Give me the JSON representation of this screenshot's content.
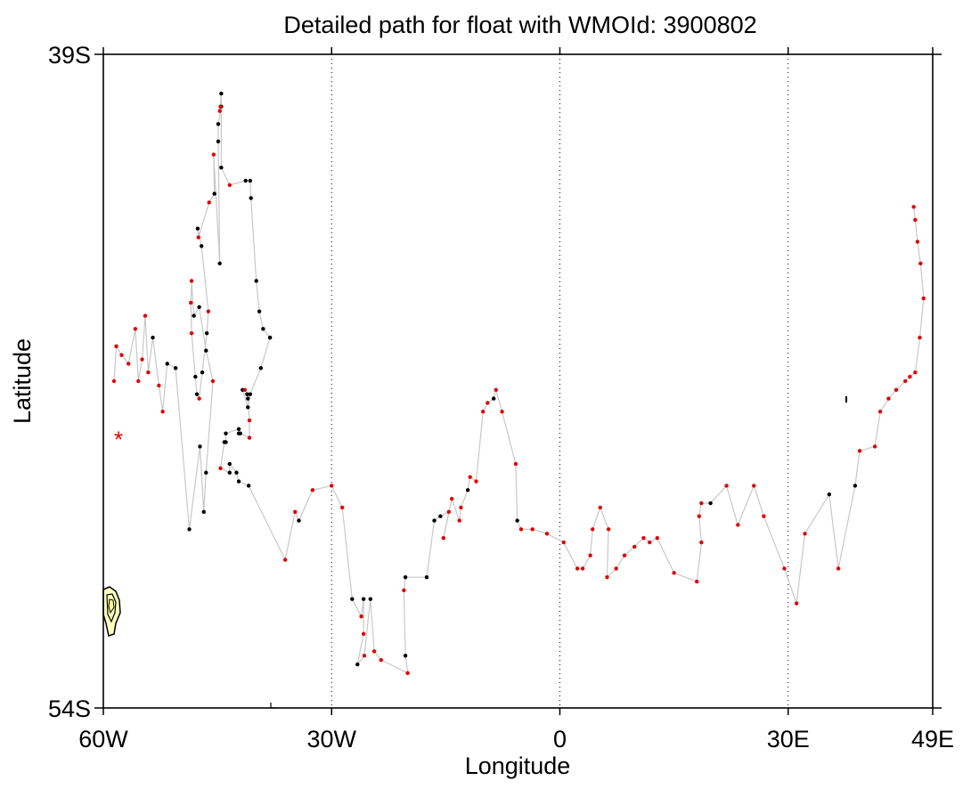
{
  "chart_data": {
    "type": "scatter",
    "title": "Detailed path for float with WMOId: 3900802",
    "xlabel": "Longitude",
    "ylabel": "Latitude",
    "xlim": [
      -60,
      49
    ],
    "ylim": [
      -54,
      -39
    ],
    "x_ticks": [
      {
        "value": -60,
        "label": "60W"
      },
      {
        "value": -30,
        "label": "30W"
      },
      {
        "value": 0,
        "label": "0"
      },
      {
        "value": 30,
        "label": "30E"
      },
      {
        "value": 49,
        "label": "49E"
      }
    ],
    "y_ticks": [
      {
        "value": -39,
        "label": "39S"
      },
      {
        "value": -54,
        "label": "54S"
      }
    ],
    "gridlines_x": [
      -30,
      0,
      30
    ],
    "grid": "dotted vertical meridians",
    "colors": {
      "path": "#c8c8c8",
      "marker_red": "#e00000",
      "marker_black": "#000000",
      "land_fill": "#ffffc0",
      "start_marker": "#e00000"
    },
    "start_marker": {
      "lon": -58,
      "lat": -47.8,
      "symbol": "*"
    },
    "path": [
      {
        "lon": -58.6,
        "lat": -46.5,
        "c": "r"
      },
      {
        "lon": -58.3,
        "lat": -45.7,
        "c": "r"
      },
      {
        "lon": -57.6,
        "lat": -45.9,
        "c": "r"
      },
      {
        "lon": -56.7,
        "lat": -46.1,
        "c": "r"
      },
      {
        "lon": -55.8,
        "lat": -45.3,
        "c": "r"
      },
      {
        "lon": -55.4,
        "lat": -46.5,
        "c": "r"
      },
      {
        "lon": -54.9,
        "lat": -46.0,
        "c": "r"
      },
      {
        "lon": -54.5,
        "lat": -45.0,
        "c": "r"
      },
      {
        "lon": -54.1,
        "lat": -46.3,
        "c": "r"
      },
      {
        "lon": -53.5,
        "lat": -45.5,
        "c": "k"
      },
      {
        "lon": -52.7,
        "lat": -46.6,
        "c": "r"
      },
      {
        "lon": -52.2,
        "lat": -47.2,
        "c": "r"
      },
      {
        "lon": -51.6,
        "lat": -46.1,
        "c": "k"
      },
      {
        "lon": -50.5,
        "lat": -46.2,
        "c": "k"
      },
      {
        "lon": -48.7,
        "lat": -49.9,
        "c": "k"
      },
      {
        "lon": -47.3,
        "lat": -48.0,
        "c": "k"
      },
      {
        "lon": -46.8,
        "lat": -49.5,
        "c": "k"
      },
      {
        "lon": -46.5,
        "lat": -48.6,
        "c": "k"
      },
      {
        "lon": -45.6,
        "lat": -46.5,
        "c": "r"
      },
      {
        "lon": -46.5,
        "lat": -45.8,
        "c": "k"
      },
      {
        "lon": -47.4,
        "lat": -44.8,
        "c": "k"
      },
      {
        "lon": -48.1,
        "lat": -45.0,
        "c": "k"
      },
      {
        "lon": -48.4,
        "lat": -44.2,
        "c": "r"
      },
      {
        "lon": -48.5,
        "lat": -44.7,
        "c": "r"
      },
      {
        "lon": -48.4,
        "lat": -45.4,
        "c": "r"
      },
      {
        "lon": -47.9,
        "lat": -46.4,
        "c": "k"
      },
      {
        "lon": -47.7,
        "lat": -46.8,
        "c": "k"
      },
      {
        "lon": -47.4,
        "lat": -46.9,
        "c": "r"
      },
      {
        "lon": -47.0,
        "lat": -46.3,
        "c": "k"
      },
      {
        "lon": -46.4,
        "lat": -45.4,
        "c": "k"
      },
      {
        "lon": -46.2,
        "lat": -44.9,
        "c": "r"
      },
      {
        "lon": -47.1,
        "lat": -43.4,
        "c": "k"
      },
      {
        "lon": -47.6,
        "lat": -43.0,
        "c": "k"
      },
      {
        "lon": -47.5,
        "lat": -43.2,
        "c": "r"
      },
      {
        "lon": -46.1,
        "lat": -42.4,
        "c": "r"
      },
      {
        "lon": -45.4,
        "lat": -42.2,
        "c": "k"
      },
      {
        "lon": -45.5,
        "lat": -41.3,
        "c": "r"
      },
      {
        "lon": -44.7,
        "lat": -43.8,
        "c": "k"
      },
      {
        "lon": -44.9,
        "lat": -41.0,
        "c": "k"
      },
      {
        "lon": -44.9,
        "lat": -40.6,
        "c": "k"
      },
      {
        "lon": -44.5,
        "lat": -40.2,
        "c": "k"
      },
      {
        "lon": -44.6,
        "lat": -40.2,
        "c": "r"
      },
      {
        "lon": -44.7,
        "lat": -40.3,
        "c": "r"
      },
      {
        "lon": -44.5,
        "lat": -39.9,
        "c": "k"
      },
      {
        "lon": -44.5,
        "lat": -41.6,
        "c": "k"
      },
      {
        "lon": -43.4,
        "lat": -42.0,
        "c": "r"
      },
      {
        "lon": -41.3,
        "lat": -41.9,
        "c": "k"
      },
      {
        "lon": -40.7,
        "lat": -41.9,
        "c": "k"
      },
      {
        "lon": -40.6,
        "lat": -42.3,
        "c": "k"
      },
      {
        "lon": -39.9,
        "lat": -44.2,
        "c": "k"
      },
      {
        "lon": -39.5,
        "lat": -44.9,
        "c": "k"
      },
      {
        "lon": -39.0,
        "lat": -45.3,
        "c": "k"
      },
      {
        "lon": -38.1,
        "lat": -45.5,
        "c": "k"
      },
      {
        "lon": -38.1,
        "lat": -45.5,
        "c": "k"
      },
      {
        "lon": -39.3,
        "lat": -46.2,
        "c": "k"
      },
      {
        "lon": -40.7,
        "lat": -46.8,
        "c": "k"
      },
      {
        "lon": -41.0,
        "lat": -47.1,
        "c": "k"
      },
      {
        "lon": -41.7,
        "lat": -46.7,
        "c": "k"
      },
      {
        "lon": -41.4,
        "lat": -46.7,
        "c": "r"
      },
      {
        "lon": -41.1,
        "lat": -46.8,
        "c": "k"
      },
      {
        "lon": -41.0,
        "lat": -46.9,
        "c": "k"
      },
      {
        "lon": -40.8,
        "lat": -47.4,
        "c": "r"
      },
      {
        "lon": -40.8,
        "lat": -47.8,
        "c": "r"
      },
      {
        "lon": -42.0,
        "lat": -47.7,
        "c": "k"
      },
      {
        "lon": -42.2,
        "lat": -47.7,
        "c": "k"
      },
      {
        "lon": -42.2,
        "lat": -47.6,
        "c": "k"
      },
      {
        "lon": -43.9,
        "lat": -47.7,
        "c": "k"
      },
      {
        "lon": -43.9,
        "lat": -47.9,
        "c": "k"
      },
      {
        "lon": -44.1,
        "lat": -47.9,
        "c": "k"
      },
      {
        "lon": -44.6,
        "lat": -48.5,
        "c": "r"
      },
      {
        "lon": -43.4,
        "lat": -48.6,
        "c": "k"
      },
      {
        "lon": -43.4,
        "lat": -48.4,
        "c": "k"
      },
      {
        "lon": -42.5,
        "lat": -48.6,
        "c": "k"
      },
      {
        "lon": -42.2,
        "lat": -48.8,
        "c": "k"
      },
      {
        "lon": -40.9,
        "lat": -48.9,
        "c": "k"
      },
      {
        "lon": -36.1,
        "lat": -50.6,
        "c": "r"
      },
      {
        "lon": -34.8,
        "lat": -49.5,
        "c": "r"
      },
      {
        "lon": -34.3,
        "lat": -49.7,
        "c": "k"
      },
      {
        "lon": -32.5,
        "lat": -49.0,
        "c": "r"
      },
      {
        "lon": -30.0,
        "lat": -48.9,
        "c": "r"
      },
      {
        "lon": -28.6,
        "lat": -49.4,
        "c": "r"
      },
      {
        "lon": -27.3,
        "lat": -51.5,
        "c": "k"
      },
      {
        "lon": -26.1,
        "lat": -51.9,
        "c": "r"
      },
      {
        "lon": -25.8,
        "lat": -51.5,
        "c": "k"
      },
      {
        "lon": -25.8,
        "lat": -52.3,
        "c": "r"
      },
      {
        "lon": -26.6,
        "lat": -53.0,
        "c": "k"
      },
      {
        "lon": -25.7,
        "lat": -52.8,
        "c": "r"
      },
      {
        "lon": -24.9,
        "lat": -51.5,
        "c": "k"
      },
      {
        "lon": -24.4,
        "lat": -52.7,
        "c": "r"
      },
      {
        "lon": -23.5,
        "lat": -52.9,
        "c": "r"
      },
      {
        "lon": -20.0,
        "lat": -53.2,
        "c": "r"
      },
      {
        "lon": -20.3,
        "lat": -52.8,
        "c": "k"
      },
      {
        "lon": -20.5,
        "lat": -51.3,
        "c": "r"
      },
      {
        "lon": -20.3,
        "lat": -51.0,
        "c": "k"
      },
      {
        "lon": -17.5,
        "lat": -51.0,
        "c": "k"
      },
      {
        "lon": -16.5,
        "lat": -49.7,
        "c": "k"
      },
      {
        "lon": -15.7,
        "lat": -49.6,
        "c": "k"
      },
      {
        "lon": -14.6,
        "lat": -49.5,
        "c": "r"
      },
      {
        "lon": -15.3,
        "lat": -50.1,
        "c": "r"
      },
      {
        "lon": -14.2,
        "lat": -49.2,
        "c": "r"
      },
      {
        "lon": -13.2,
        "lat": -49.7,
        "c": "r"
      },
      {
        "lon": -13.0,
        "lat": -49.4,
        "c": "r"
      },
      {
        "lon": -12.1,
        "lat": -49.0,
        "c": "k"
      },
      {
        "lon": -11.8,
        "lat": -48.7,
        "c": "r"
      },
      {
        "lon": -11.0,
        "lat": -48.8,
        "c": "r"
      },
      {
        "lon": -10.1,
        "lat": -47.2,
        "c": "r"
      },
      {
        "lon": -9.5,
        "lat": -47.0,
        "c": "r"
      },
      {
        "lon": -8.7,
        "lat": -46.9,
        "c": "k"
      },
      {
        "lon": -8.4,
        "lat": -46.7,
        "c": "r"
      },
      {
        "lon": -7.6,
        "lat": -47.2,
        "c": "r"
      },
      {
        "lon": -5.8,
        "lat": -48.4,
        "c": "r"
      },
      {
        "lon": -5.6,
        "lat": -49.7,
        "c": "k"
      },
      {
        "lon": -5.1,
        "lat": -49.9,
        "c": "r"
      },
      {
        "lon": -3.6,
        "lat": -49.9,
        "c": "r"
      },
      {
        "lon": -1.7,
        "lat": -50.0,
        "c": "r"
      },
      {
        "lon": 0.5,
        "lat": -50.2,
        "c": "r"
      },
      {
        "lon": 2.3,
        "lat": -50.8,
        "c": "r"
      },
      {
        "lon": 3.0,
        "lat": -50.8,
        "c": "r"
      },
      {
        "lon": 4.0,
        "lat": -50.5,
        "c": "r"
      },
      {
        "lon": 4.3,
        "lat": -49.9,
        "c": "r"
      },
      {
        "lon": 5.3,
        "lat": -49.4,
        "c": "r"
      },
      {
        "lon": 6.4,
        "lat": -49.9,
        "c": "r"
      },
      {
        "lon": 6.2,
        "lat": -51.0,
        "c": "r"
      },
      {
        "lon": 7.4,
        "lat": -50.8,
        "c": "r"
      },
      {
        "lon": 8.5,
        "lat": -50.5,
        "c": "r"
      },
      {
        "lon": 9.8,
        "lat": -50.3,
        "c": "r"
      },
      {
        "lon": 11.0,
        "lat": -50.1,
        "c": "r"
      },
      {
        "lon": 11.8,
        "lat": -50.2,
        "c": "r"
      },
      {
        "lon": 12.8,
        "lat": -50.1,
        "c": "r"
      },
      {
        "lon": 15.0,
        "lat": -50.9,
        "c": "r"
      },
      {
        "lon": 18.0,
        "lat": -51.1,
        "c": "r"
      },
      {
        "lon": 18.6,
        "lat": -50.2,
        "c": "r"
      },
      {
        "lon": 18.3,
        "lat": -49.6,
        "c": "r"
      },
      {
        "lon": 18.6,
        "lat": -49.3,
        "c": "r"
      },
      {
        "lon": 19.8,
        "lat": -49.3,
        "c": "k"
      },
      {
        "lon": 21.9,
        "lat": -48.9,
        "c": "r"
      },
      {
        "lon": 23.4,
        "lat": -49.8,
        "c": "r"
      },
      {
        "lon": 25.5,
        "lat": -48.9,
        "c": "r"
      },
      {
        "lon": 26.8,
        "lat": -49.6,
        "c": "r"
      },
      {
        "lon": 29.5,
        "lat": -50.8,
        "c": "r"
      },
      {
        "lon": 31.1,
        "lat": -51.6,
        "c": "r"
      },
      {
        "lon": 32.2,
        "lat": -50.0,
        "c": "r"
      },
      {
        "lon": 35.4,
        "lat": -49.1,
        "c": "k"
      },
      {
        "lon": 36.6,
        "lat": -50.8,
        "c": "r"
      },
      {
        "lon": 38.8,
        "lat": -48.9,
        "c": "k"
      },
      {
        "lon": 39.4,
        "lat": -48.1,
        "c": "r"
      },
      {
        "lon": 41.4,
        "lat": -48.0,
        "c": "r"
      },
      {
        "lon": 42.1,
        "lat": -47.2,
        "c": "r"
      },
      {
        "lon": 43.2,
        "lat": -46.9,
        "c": "r"
      },
      {
        "lon": 44.2,
        "lat": -46.7,
        "c": "r"
      },
      {
        "lon": 45.4,
        "lat": -46.5,
        "c": "r"
      },
      {
        "lon": 46.0,
        "lat": -46.4,
        "c": "r"
      },
      {
        "lon": 46.7,
        "lat": -46.3,
        "c": "r"
      },
      {
        "lon": 47.3,
        "lat": -45.5,
        "c": "r"
      },
      {
        "lon": 47.8,
        "lat": -44.6,
        "c": "r"
      },
      {
        "lon": 47.4,
        "lat": -43.8,
        "c": "r"
      },
      {
        "lon": 47.0,
        "lat": -43.3,
        "c": "r"
      },
      {
        "lon": 46.7,
        "lat": -42.8,
        "c": "r"
      },
      {
        "lon": 46.5,
        "lat": -42.5,
        "c": "r"
      }
    ]
  }
}
